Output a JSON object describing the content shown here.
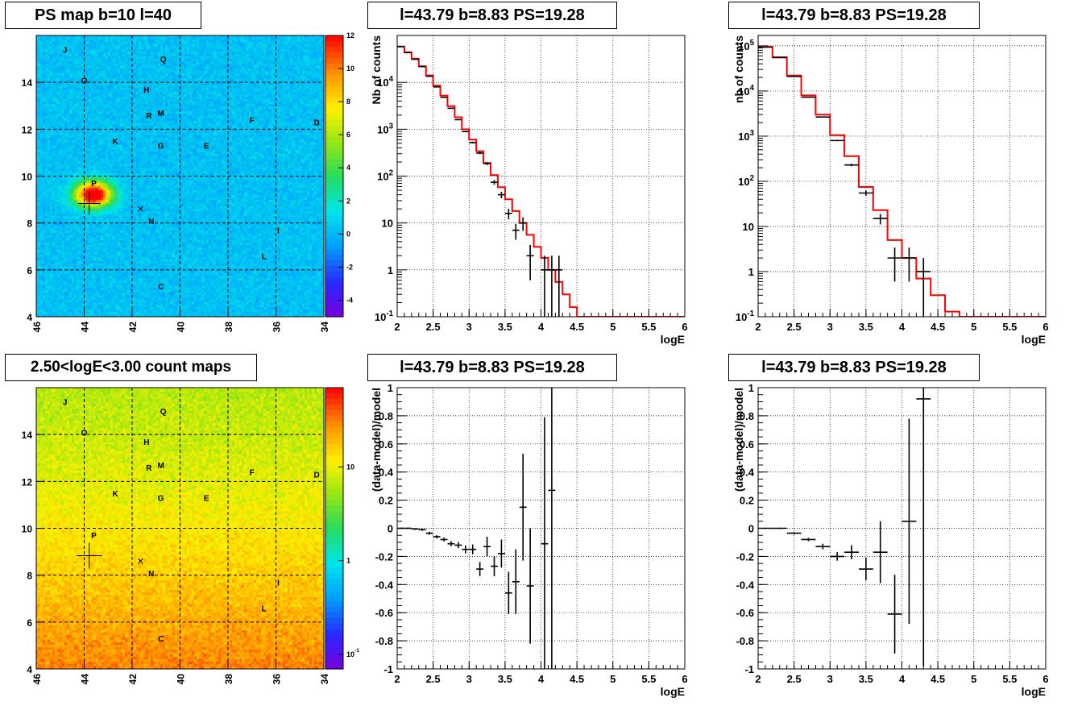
{
  "chart_data": [
    {
      "id": "psmap",
      "type": "heatmap",
      "title": "PS map b=10 l=40",
      "x_ticks": [
        "46",
        "44",
        "42",
        "40",
        "38",
        "36",
        "34"
      ],
      "y_ticks": [
        "4",
        "6",
        "8",
        "10",
        "12",
        "14"
      ],
      "xlim": [
        46,
        34
      ],
      "ylim": [
        4,
        16
      ],
      "grid": true,
      "colorbar": {
        "scale": "linear",
        "range": [
          -5,
          12
        ],
        "ticks": [
          "12",
          "10",
          "8",
          "6",
          "4",
          "2",
          "0",
          "-2",
          "-4"
        ]
      },
      "labels": [
        {
          "text": "J",
          "l": 44.8,
          "b": 15.4
        },
        {
          "text": "Q",
          "l": 40.7,
          "b": 15.0
        },
        {
          "text": "O",
          "l": 44.0,
          "b": 14.1
        },
        {
          "text": "H",
          "l": 41.4,
          "b": 13.7
        },
        {
          "text": "R",
          "l": 41.3,
          "b": 12.6
        },
        {
          "text": "M",
          "l": 40.8,
          "b": 12.7
        },
        {
          "text": "F",
          "l": 37.0,
          "b": 12.4
        },
        {
          "text": "D",
          "l": 34.3,
          "b": 12.3
        },
        {
          "text": "K",
          "l": 42.7,
          "b": 11.5
        },
        {
          "text": "G",
          "l": 40.8,
          "b": 11.3
        },
        {
          "text": "E",
          "l": 38.9,
          "b": 11.3
        },
        {
          "text": "P",
          "l": 43.6,
          "b": 9.7
        },
        {
          "text": "N",
          "l": 41.2,
          "b": 8.1
        },
        {
          "text": "I",
          "l": 35.9,
          "b": 7.7
        },
        {
          "text": "L",
          "l": 36.5,
          "b": 6.6
        },
        {
          "text": "C",
          "l": 40.8,
          "b": 5.3
        }
      ],
      "hotspot": {
        "l": 43.6,
        "b": 9.2,
        "peak": 12
      }
    },
    {
      "id": "countmap",
      "type": "heatmap",
      "title": "2.50<logE<3.00 count maps",
      "x_ticks": [
        "46",
        "44",
        "42",
        "40",
        "38",
        "36",
        "34"
      ],
      "y_ticks": [
        "4",
        "6",
        "8",
        "10",
        "12",
        "14"
      ],
      "xlim": [
        46,
        34
      ],
      "ylim": [
        4,
        16
      ],
      "grid": true,
      "colorbar": {
        "scale": "log",
        "range": [
          0.07,
          70
        ],
        "ticks": [
          "10",
          "1",
          "10^-1"
        ]
      },
      "labels": [
        {
          "text": "J",
          "l": 44.8,
          "b": 15.4
        },
        {
          "text": "Q",
          "l": 40.7,
          "b": 15.0
        },
        {
          "text": "O",
          "l": 44.0,
          "b": 14.1
        },
        {
          "text": "H",
          "l": 41.4,
          "b": 13.7
        },
        {
          "text": "R",
          "l": 41.3,
          "b": 12.6
        },
        {
          "text": "M",
          "l": 40.8,
          "b": 12.7
        },
        {
          "text": "F",
          "l": 37.0,
          "b": 12.4
        },
        {
          "text": "D",
          "l": 34.3,
          "b": 12.3
        },
        {
          "text": "K",
          "l": 42.7,
          "b": 11.5
        },
        {
          "text": "G",
          "l": 40.8,
          "b": 11.3
        },
        {
          "text": "E",
          "l": 38.9,
          "b": 11.3
        },
        {
          "text": "P",
          "l": 43.6,
          "b": 9.7
        },
        {
          "text": "N",
          "l": 41.2,
          "b": 8.1
        },
        {
          "text": "I",
          "l": 35.9,
          "b": 7.7
        },
        {
          "text": "L",
          "l": 36.5,
          "b": 6.6
        },
        {
          "text": "C",
          "l": 40.8,
          "b": 5.3
        }
      ]
    },
    {
      "id": "spec1",
      "type": "line",
      "title": "l=43.79 b=8.83 PS=19.28",
      "xlabel": "logE",
      "ylabel": "Nb of counts",
      "xlim": [
        2,
        6
      ],
      "ylim": [
        0.1,
        100000
      ],
      "yscale": "log",
      "x_ticks": [
        "2",
        "2.5",
        "3",
        "3.5",
        "4",
        "4.5",
        "5",
        "5.5",
        "6"
      ],
      "y_ticks": [
        "10^-1",
        "1",
        "10",
        "10^2",
        "10^3",
        "10^4"
      ],
      "series": [
        {
          "color": "#ff0000",
          "bin_width": 0.1,
          "x": [
            2.0,
            2.1,
            2.2,
            2.3,
            2.4,
            2.5,
            2.6,
            2.7,
            2.8,
            2.9,
            3.0,
            3.1,
            3.2,
            3.3,
            3.4,
            3.5,
            3.6,
            3.7,
            3.8,
            3.9,
            4.0,
            4.1,
            4.2,
            4.3,
            4.4,
            4.5,
            4.6,
            4.7,
            4.8,
            4.9,
            5.0,
            5.1,
            5.2,
            5.3,
            5.4,
            5.5,
            5.6,
            5.7,
            5.8,
            5.9
          ],
          "values": [
            58000,
            44000,
            32000,
            22000,
            14000,
            8500,
            5200,
            3100,
            1800,
            1000,
            600,
            340,
            190,
            105,
            58,
            32,
            18,
            10,
            5.6,
            3.1,
            1.8,
            1.0,
            0.55,
            0.3,
            0.16,
            0.1,
            0.1,
            0.1,
            0.1,
            0.1,
            0.1,
            0.1,
            0.1,
            0.1,
            0.1,
            0.1,
            0.1,
            0.1,
            0.1,
            0.1
          ]
        },
        {
          "color": "#000000",
          "x": [
            2.05,
            2.15,
            2.25,
            2.35,
            2.45,
            2.55,
            2.65,
            2.75,
            2.85,
            2.95,
            3.05,
            3.15,
            3.25,
            3.35,
            3.45,
            3.55,
            3.65,
            3.75,
            3.85,
            4.05,
            4.15,
            4.25
          ],
          "values": [
            58000,
            43000,
            31000,
            21700,
            13500,
            8000,
            4800,
            2800,
            1600,
            890,
            520,
            310,
            185,
            74,
            40,
            16,
            7,
            10,
            2,
            1,
            1,
            1
          ],
          "errors": [
            240,
            210,
            176,
            147,
            116,
            89,
            69,
            53,
            40,
            30,
            23,
            18,
            14,
            8.6,
            6.3,
            4,
            2.6,
            3.2,
            1.4,
            1,
            1,
            1
          ]
        }
      ]
    },
    {
      "id": "spec2",
      "type": "line",
      "title": "l=43.79 b=8.83 PS=19.28",
      "xlabel": "logE",
      "ylabel": "nb of counts",
      "xlim": [
        2,
        6
      ],
      "ylim": [
        0.1,
        170000
      ],
      "yscale": "log",
      "x_ticks": [
        "2",
        "2.5",
        "3",
        "3.5",
        "4",
        "4.5",
        "5",
        "5.5",
        "6"
      ],
      "y_ticks": [
        "10^-1",
        "1",
        "10",
        "10^2",
        "10^3",
        "10^4",
        "10^5"
      ],
      "series": [
        {
          "color": "#ff0000",
          "bin_width": 0.2,
          "x": [
            2.0,
            2.2,
            2.4,
            2.6,
            2.8,
            3.0,
            3.2,
            3.4,
            3.6,
            3.8,
            4.0,
            4.2,
            4.4,
            4.6,
            4.8,
            5.0,
            5.2,
            5.4,
            5.6,
            5.8
          ],
          "values": [
            95000,
            56000,
            22000,
            8000,
            3000,
            1050,
            360,
            75,
            23,
            5,
            2,
            0.7,
            0.3,
            0.13,
            0.1,
            0.1,
            0.1,
            0.1,
            0.1,
            0.1
          ]
        },
        {
          "color": "#000000",
          "x": [
            2.1,
            2.3,
            2.5,
            2.7,
            2.9,
            3.1,
            3.3,
            3.5,
            3.7,
            3.9,
            4.1,
            4.3
          ],
          "values": [
            94000,
            55000,
            21000,
            7300,
            2650,
            800,
            230,
            55,
            15,
            2,
            2,
            1
          ],
          "errors": [
            307,
            235,
            145,
            85,
            51,
            28,
            15,
            7.4,
            3.9,
            1.4,
            1.4,
            1
          ]
        }
      ]
    },
    {
      "id": "resid1",
      "type": "scatter",
      "title": "l=43.79 b=8.83 PS=19.28",
      "xlabel": "logE",
      "ylabel": "(data-model)/model",
      "xlim": [
        2,
        6
      ],
      "ylim": [
        -1,
        1
      ],
      "x_ticks": [
        "2",
        "2.5",
        "3",
        "3.5",
        "4",
        "4.5",
        "5",
        "5.5",
        "6"
      ],
      "y_ticks": [
        "-1",
        "-0.8",
        "-0.6",
        "-0.4",
        "-0.2",
        "0",
        "0.2",
        "0.4",
        "0.6",
        "0.8",
        "1"
      ],
      "series": [
        {
          "color": "#000000",
          "x": [
            2.05,
            2.15,
            2.25,
            2.35,
            2.45,
            2.55,
            2.65,
            2.75,
            2.85,
            2.95,
            3.05,
            3.15,
            3.25,
            3.35,
            3.45,
            3.55,
            3.65,
            3.75,
            3.85,
            4.05,
            4.15
          ],
          "values": [
            0.0,
            0.0,
            -0.005,
            -0.01,
            -0.035,
            -0.06,
            -0.08,
            -0.11,
            -0.12,
            -0.15,
            -0.15,
            -0.29,
            -0.13,
            -0.27,
            -0.18,
            -0.46,
            -0.38,
            0.15,
            -0.41,
            -0.11,
            0.27
          ],
          "errors": [
            0.005,
            0.005,
            0.006,
            0.008,
            0.01,
            0.012,
            0.014,
            0.018,
            0.022,
            0.028,
            0.035,
            0.05,
            0.07,
            0.07,
            0.1,
            0.15,
            0.23,
            0.38,
            0.41,
            0.9,
            1.3
          ]
        }
      ]
    },
    {
      "id": "resid2",
      "type": "scatter",
      "title": "l=43.79 b=8.83 PS=19.28",
      "xlabel": "logE",
      "ylabel": "(data-model)/model",
      "xlim": [
        2,
        6
      ],
      "ylim": [
        -1,
        1
      ],
      "x_ticks": [
        "2",
        "2.5",
        "3",
        "3.5",
        "4",
        "4.5",
        "5",
        "5.5",
        "6"
      ],
      "y_ticks": [
        "-1",
        "-0.8",
        "-0.6",
        "-0.4",
        "-0.2",
        "0",
        "0.2",
        "0.4",
        "0.6",
        "0.8",
        "1"
      ],
      "series": [
        {
          "color": "#000000",
          "x": [
            2.1,
            2.3,
            2.5,
            2.7,
            2.9,
            3.1,
            3.3,
            3.5,
            3.7,
            3.9,
            4.1,
            4.3
          ],
          "values": [
            0.0,
            0.0,
            -0.035,
            -0.08,
            -0.13,
            -0.2,
            -0.17,
            -0.29,
            -0.17,
            -0.61,
            0.05,
            0.92
          ],
          "errors": [
            0.004,
            0.005,
            0.008,
            0.012,
            0.02,
            0.03,
            0.05,
            0.08,
            0.22,
            0.28,
            0.73,
            1.9
          ]
        }
      ]
    }
  ]
}
